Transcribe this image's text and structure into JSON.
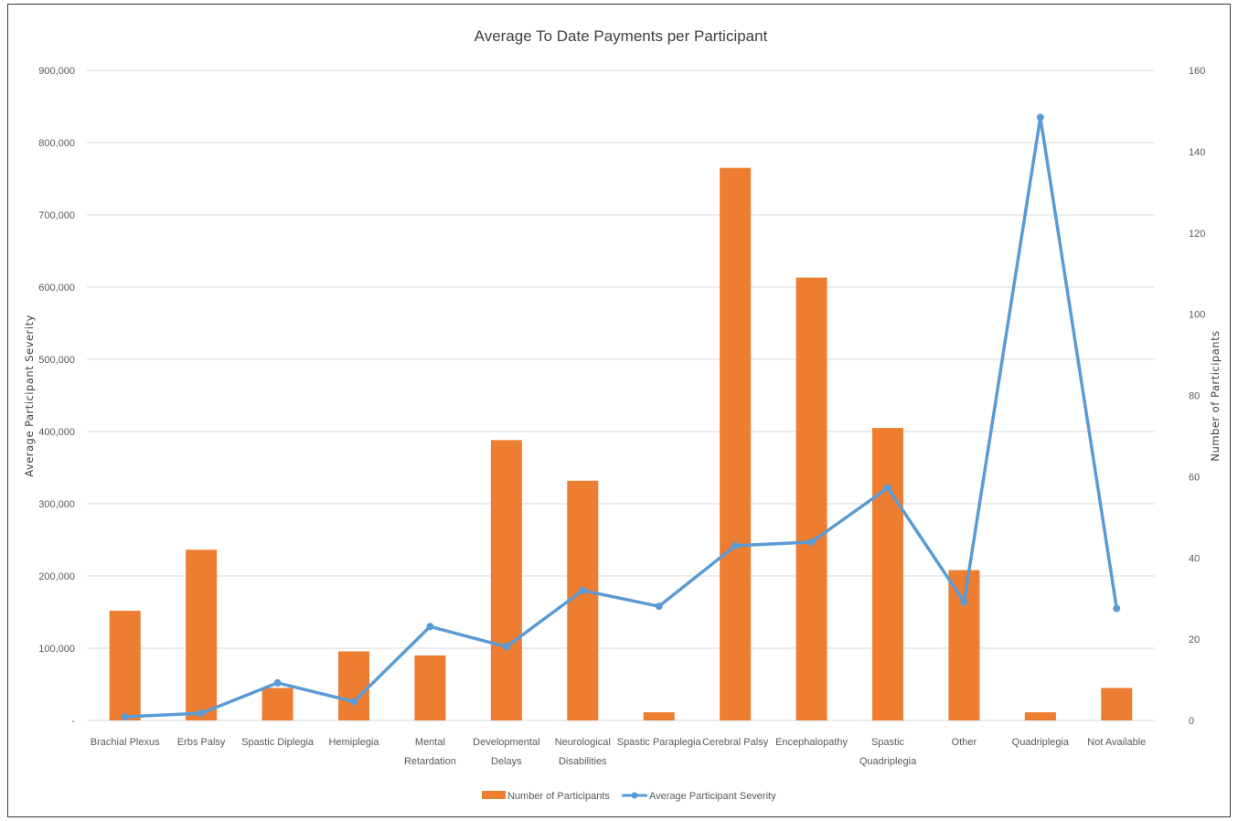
{
  "chart_data": {
    "type": "bar",
    "title": "Average To Date Payments per Participant",
    "categories": [
      [
        "Brachial Plexus"
      ],
      [
        "Erbs Palsy"
      ],
      [
        "Spastic Diplegia"
      ],
      [
        "Hemiplegia"
      ],
      [
        "Mental",
        "Retardation"
      ],
      [
        "Developmental",
        "Delays"
      ],
      [
        "Neurological",
        "Disabilities"
      ],
      [
        "Spastic Paraplegia"
      ],
      [
        "Cerebral Palsy"
      ],
      [
        "Encephalopathy"
      ],
      [
        "Spastic",
        "Quadriplegia"
      ],
      [
        "Other"
      ],
      [
        "Quadriplegia"
      ],
      [
        "Not Available"
      ]
    ],
    "series": [
      {
        "name": "Number of Participants",
        "type": "bar",
        "axis": "right",
        "color": "#ED7D31",
        "values": [
          27,
          42,
          8,
          17,
          16,
          69,
          59,
          2,
          136,
          109,
          72,
          37,
          2,
          8
        ]
      },
      {
        "name": "Average Participant Severity",
        "type": "line",
        "axis": "left",
        "color": "#5B9BD5",
        "values": [
          5000,
          10000,
          52000,
          26000,
          130000,
          102000,
          180000,
          158000,
          242000,
          247000,
          322000,
          164000,
          835000,
          155000
        ]
      }
    ],
    "ylabel": "Average Participant Severity",
    "y2label": "Number of Participants",
    "ylim": [
      0,
      900000
    ],
    "y2lim": [
      0,
      160
    ],
    "yticks": [
      "-",
      "100,000",
      "200,000",
      "300,000",
      "400,000",
      "500,000",
      "600,000",
      "700,000",
      "800,000",
      "900,000"
    ],
    "y2ticks": [
      "0",
      "20",
      "40",
      "60",
      "80",
      "100",
      "120",
      "140",
      "160"
    ],
    "grid": true,
    "legend": "bottom"
  }
}
